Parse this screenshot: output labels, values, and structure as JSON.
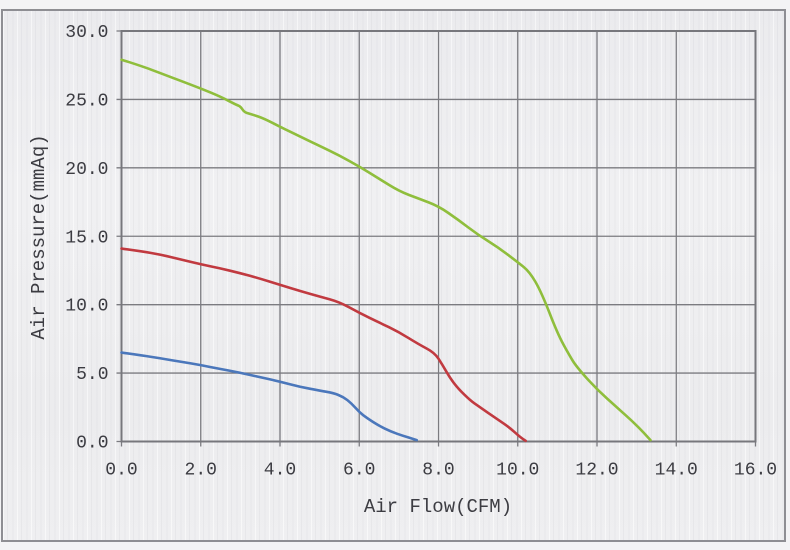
{
  "chart_data": {
    "type": "line",
    "title": "",
    "xlabel": "Air Flow(CFM)",
    "ylabel": "Air Pressure(mmAq)",
    "xlim": [
      0,
      16
    ],
    "ylim": [
      0,
      30
    ],
    "x_ticks": [
      0,
      2,
      4,
      6,
      8,
      10,
      12,
      14,
      16
    ],
    "x_tick_labels": [
      "0.0",
      "2.0",
      "4.0",
      "6.0",
      "8.0",
      "10.0",
      "12.0",
      "14.0",
      "16.0"
    ],
    "y_ticks": [
      0,
      5,
      10,
      15,
      20,
      25,
      30
    ],
    "y_tick_labels": [
      "0.0",
      "5.0",
      "10.0",
      "15.0",
      "20.0",
      "25.0",
      "30.0"
    ],
    "grid": true,
    "legend": false,
    "series": [
      {
        "name": "green-curve",
        "color": "#8fbe3c",
        "points": [
          [
            0,
            27.9
          ],
          [
            0.5,
            27.45
          ],
          [
            1,
            26.9
          ],
          [
            1.5,
            26.35
          ],
          [
            2,
            25.8
          ],
          [
            2.5,
            25.2
          ],
          [
            2.9,
            24.6
          ],
          [
            3.0,
            24.5
          ],
          [
            3.1,
            24.05
          ],
          [
            3.3,
            23.9
          ],
          [
            3.6,
            23.6
          ],
          [
            4,
            23.0
          ],
          [
            4.5,
            22.3
          ],
          [
            5,
            21.6
          ],
          [
            5.5,
            20.9
          ],
          [
            6,
            20.1
          ],
          [
            6.5,
            19.2
          ],
          [
            7,
            18.3
          ],
          [
            7.5,
            17.75
          ],
          [
            8,
            17.2
          ],
          [
            8.5,
            16.2
          ],
          [
            9,
            15.1
          ],
          [
            9.5,
            14.2
          ],
          [
            10,
            13.1
          ],
          [
            10.3,
            12.4
          ],
          [
            10.6,
            10.9
          ],
          [
            11,
            7.9
          ],
          [
            11.3,
            6.3
          ],
          [
            11.5,
            5.4
          ],
          [
            12,
            3.8
          ],
          [
            12.5,
            2.5
          ],
          [
            13,
            1.2
          ],
          [
            13.35,
            0.1
          ]
        ]
      },
      {
        "name": "red-curve",
        "color": "#c13a40",
        "points": [
          [
            0,
            14.1
          ],
          [
            0.5,
            13.9
          ],
          [
            1,
            13.65
          ],
          [
            1.5,
            13.3
          ],
          [
            2,
            12.95
          ],
          [
            2.5,
            12.65
          ],
          [
            3,
            12.3
          ],
          [
            3.5,
            11.9
          ],
          [
            4,
            11.45
          ],
          [
            4.5,
            11.0
          ],
          [
            5,
            10.6
          ],
          [
            5.5,
            10.2
          ],
          [
            6,
            9.4
          ],
          [
            6.5,
            8.7
          ],
          [
            7,
            8.0
          ],
          [
            7.5,
            7.1
          ],
          [
            7.9,
            6.5
          ],
          [
            8.1,
            5.6
          ],
          [
            8.3,
            4.6
          ],
          [
            8.5,
            3.85
          ],
          [
            8.8,
            3.0
          ],
          [
            9,
            2.6
          ],
          [
            9.5,
            1.6
          ],
          [
            9.8,
            1.0
          ],
          [
            10.05,
            0.35
          ],
          [
            10.2,
            0.05
          ]
        ]
      },
      {
        "name": "blue-curve",
        "color": "#4b77bb",
        "points": [
          [
            0,
            6.5
          ],
          [
            0.5,
            6.3
          ],
          [
            1,
            6.07
          ],
          [
            1.5,
            5.83
          ],
          [
            2,
            5.58
          ],
          [
            2.5,
            5.3
          ],
          [
            3,
            5.02
          ],
          [
            3.5,
            4.7
          ],
          [
            4,
            4.37
          ],
          [
            4.5,
            4.0
          ],
          [
            5,
            3.72
          ],
          [
            5.35,
            3.55
          ],
          [
            5.6,
            3.25
          ],
          [
            5.8,
            2.8
          ],
          [
            6,
            2.15
          ],
          [
            6.2,
            1.7
          ],
          [
            6.5,
            1.15
          ],
          [
            6.8,
            0.72
          ],
          [
            7.1,
            0.42
          ],
          [
            7.45,
            0.1
          ]
        ]
      }
    ]
  },
  "colors": {
    "grid": "#7b7b80",
    "plot_border": "#77777c",
    "frame_border": "#8e8e93",
    "text": "#3c3c42",
    "background": "#ededef",
    "outer_background": "#f3f3f5"
  }
}
